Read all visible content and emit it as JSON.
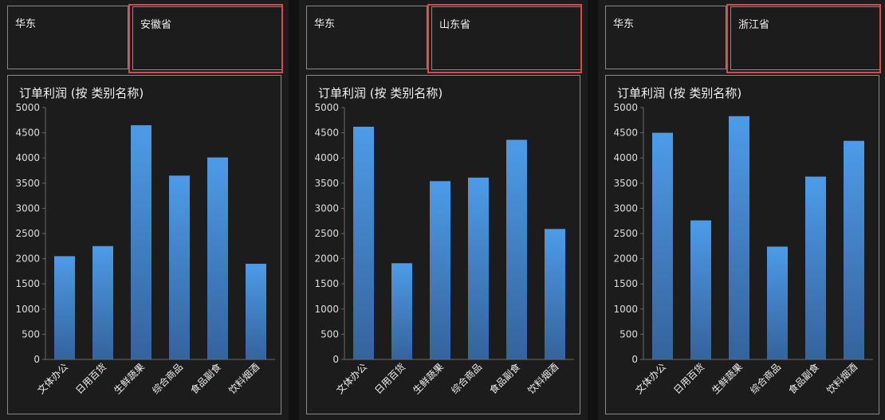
{
  "panels": [
    {
      "region": "华东",
      "province": "安徽省",
      "chart_title": "订单利润 (按 类别名称)"
    },
    {
      "region": "华东",
      "province": "山东省",
      "chart_title": "订单利润 (按 类别名称)"
    },
    {
      "region": "华东",
      "province": "浙江省",
      "chart_title": "订单利润 (按 类别名称)"
    }
  ],
  "colors": {
    "bar_top": "#4d9be8",
    "bar_bottom": "#35639c",
    "highlight": "#e04848",
    "background": "#1c1c1c"
  },
  "chart_data": [
    {
      "type": "bar",
      "title": "订单利润 (按 类别名称)",
      "categories": [
        "文体办公",
        "日用百货",
        "生鲜蔬果",
        "综合商品",
        "食品副食",
        "饮料烟酒"
      ],
      "values": [
        2050,
        2250,
        4650,
        3650,
        4010,
        1900
      ],
      "ylim": [
        0,
        5000
      ],
      "yticks": [
        0,
        500,
        1000,
        1500,
        2000,
        2500,
        3000,
        3500,
        4000,
        4500,
        5000
      ],
      "grid": false
    },
    {
      "type": "bar",
      "title": "订单利润 (按 类别名称)",
      "categories": [
        "文体办公",
        "日用百货",
        "生鲜蔬果",
        "综合商品",
        "食品副食",
        "饮料烟酒"
      ],
      "values": [
        4620,
        1910,
        3540,
        3610,
        4360,
        2590
      ],
      "ylim": [
        0,
        5000
      ],
      "yticks": [
        0,
        500,
        1000,
        1500,
        2000,
        2500,
        3000,
        3500,
        4000,
        4500,
        5000
      ],
      "grid": false
    },
    {
      "type": "bar",
      "title": "订单利润 (按 类别名称)",
      "categories": [
        "文体办公",
        "日用百货",
        "生鲜蔬果",
        "综合商品",
        "食品副食",
        "饮料烟酒"
      ],
      "values": [
        4500,
        2760,
        4830,
        2240,
        3630,
        4340
      ],
      "ylim": [
        0,
        5000
      ],
      "yticks": [
        0,
        500,
        1000,
        1500,
        2000,
        2500,
        3000,
        3500,
        4000,
        4500,
        5000
      ],
      "grid": false
    }
  ]
}
